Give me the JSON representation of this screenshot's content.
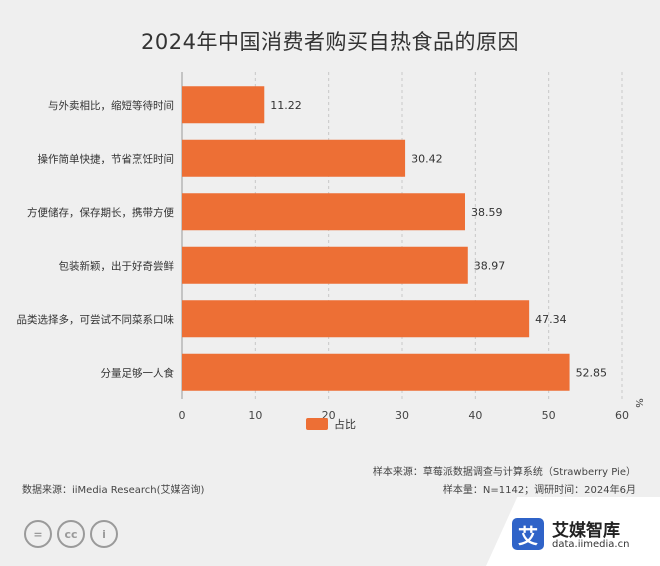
{
  "chart_data": {
    "type": "bar",
    "orientation": "horizontal",
    "title": "2024年中国消费者购买自热食品的原因",
    "categories": [
      "与外卖相比，缩短等待时间",
      "操作简单快捷，节省烹饪时间",
      "方便储存，保存期长，携带方便",
      "包装新颖，出于好奇尝鲜",
      "品类选择多，可尝试不同菜系口味",
      "分量足够一人食"
    ],
    "series": [
      {
        "name": "占比",
        "values": [
          11.22,
          30.42,
          38.59,
          38.97,
          47.34,
          52.85
        ],
        "color": "#ed6f35"
      }
    ],
    "xlim": [
      0,
      60
    ],
    "xticks": [
      0,
      10,
      20,
      30,
      40,
      50,
      60
    ],
    "unit": "%",
    "grid": "vertical dashed",
    "legend_position": "bottom-center"
  },
  "footer": {
    "source": "数据来源：iiMedia Research(艾媒咨询)",
    "sample_source": "样本来源：草莓派数据调查与计算系统（Strawberry Pie）",
    "sample_info": "样本量：N=1142；调研时间：2024年6月"
  },
  "license_icons": [
    "=",
    "cc",
    "i"
  ],
  "brand": {
    "logo_char": "艾",
    "name": "艾媒智库",
    "url": "data.iimedia.cn",
    "color": "#2f63c8"
  }
}
